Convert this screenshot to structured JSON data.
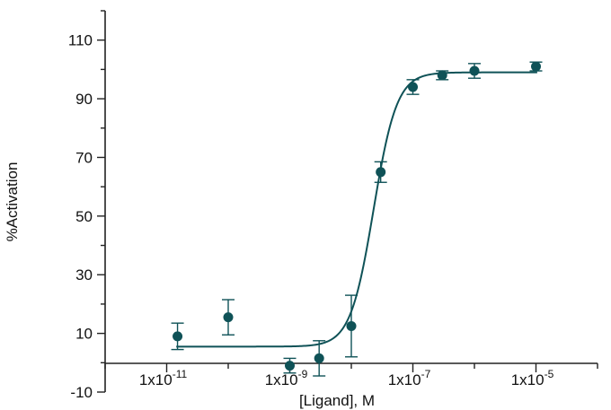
{
  "chart_data": {
    "type": "scatter",
    "title": "",
    "xlabel": "[Ligand], M",
    "ylabel": "%Activation",
    "x_scale": "log",
    "xlim": [
      1e-12,
      0.0001
    ],
    "ylim": [
      -10,
      120
    ],
    "x_tick_values": [
      1e-11,
      1e-09,
      1e-07,
      1e-05
    ],
    "x_tick_labels": [
      {
        "base": "1x10",
        "exp": "-11"
      },
      {
        "base": "1x10",
        "exp": "-9"
      },
      {
        "base": "1x10",
        "exp": "-7"
      },
      {
        "base": "1x10",
        "exp": "-5"
      }
    ],
    "y_ticks": [
      -10,
      10,
      30,
      50,
      70,
      90,
      110
    ],
    "grid": false,
    "color": "#0f5257",
    "series": [
      {
        "points": [
          {
            "x": 1.5e-11,
            "y": 9,
            "err": 4.5
          },
          {
            "x": 1e-10,
            "y": 15.5,
            "err": 6
          },
          {
            "x": 1e-09,
            "y": -1,
            "err": 2.5
          },
          {
            "x": 3e-09,
            "y": 1.5,
            "err": 6
          },
          {
            "x": 1e-08,
            "y": 12.5,
            "err": 10.5
          },
          {
            "x": 3e-08,
            "y": 65,
            "err": 3.5
          },
          {
            "x": 1e-07,
            "y": 94,
            "err": 2.5
          },
          {
            "x": 3e-07,
            "y": 98,
            "err": 1.5
          },
          {
            "x": 1e-06,
            "y": 99.5,
            "err": 2.5
          },
          {
            "x": 1e-05,
            "y": 101,
            "err": 1.5
          }
        ],
        "fit": {
          "bottom": 5.5,
          "top": 99,
          "ec50": 2.3e-08,
          "hill": 2.3
        }
      }
    ]
  }
}
